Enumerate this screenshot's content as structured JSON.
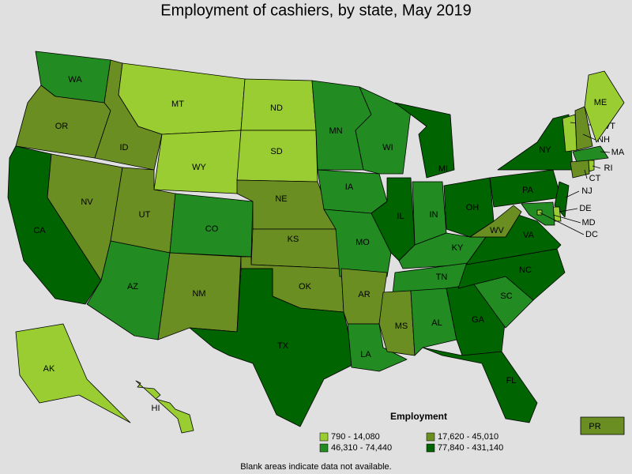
{
  "title": "Employment of cashiers, by state, May 2019",
  "legend": {
    "title": "Employment",
    "entries": [
      {
        "label": "790 - 14,080",
        "color": "#9acd32"
      },
      {
        "label": "17,620 - 45,010",
        "color": "#6b8e23"
      },
      {
        "label": "46,310 - 74,440",
        "color": "#228b22"
      },
      {
        "label": "77,840 - 431,140",
        "color": "#006400"
      }
    ]
  },
  "footnote": "Blank areas indicate data not available.",
  "states": [
    {
      "name": "WA",
      "color": "#228b22"
    },
    {
      "name": "OR",
      "color": "#6b8e23"
    },
    {
      "name": "CA",
      "color": "#006400"
    },
    {
      "name": "NV",
      "color": "#6b8e23"
    },
    {
      "name": "ID",
      "color": "#6b8e23"
    },
    {
      "name": "MT",
      "color": "#9acd32"
    },
    {
      "name": "WY",
      "color": "#9acd32"
    },
    {
      "name": "UT",
      "color": "#6b8e23"
    },
    {
      "name": "AZ",
      "color": "#228b22"
    },
    {
      "name": "CO",
      "color": "#228b22"
    },
    {
      "name": "NM",
      "color": "#6b8e23"
    },
    {
      "name": "ND",
      "color": "#9acd32"
    },
    {
      "name": "SD",
      "color": "#9acd32"
    },
    {
      "name": "NE",
      "color": "#6b8e23"
    },
    {
      "name": "KS",
      "color": "#6b8e23"
    },
    {
      "name": "OK",
      "color": "#6b8e23"
    },
    {
      "name": "TX",
      "color": "#006400"
    },
    {
      "name": "MN",
      "color": "#228b22"
    },
    {
      "name": "IA",
      "color": "#228b22"
    },
    {
      "name": "MO",
      "color": "#228b22"
    },
    {
      "name": "AR",
      "color": "#6b8e23"
    },
    {
      "name": "LA",
      "color": "#228b22"
    },
    {
      "name": "WI",
      "color": "#228b22"
    },
    {
      "name": "IL",
      "color": "#006400"
    },
    {
      "name": "MI",
      "color": "#006400"
    },
    {
      "name": "IN",
      "color": "#228b22"
    },
    {
      "name": "OH",
      "color": "#006400"
    },
    {
      "name": "KY",
      "color": "#228b22"
    },
    {
      "name": "TN",
      "color": "#228b22"
    },
    {
      "name": "MS",
      "color": "#6b8e23"
    },
    {
      "name": "AL",
      "color": "#228b22"
    },
    {
      "name": "GA",
      "color": "#006400"
    },
    {
      "name": "FL",
      "color": "#006400"
    },
    {
      "name": "SC",
      "color": "#228b22"
    },
    {
      "name": "NC",
      "color": "#006400"
    },
    {
      "name": "VA",
      "color": "#006400"
    },
    {
      "name": "WV",
      "color": "#6b8e23"
    },
    {
      "name": "PA",
      "color": "#006400"
    },
    {
      "name": "NY",
      "color": "#006400"
    },
    {
      "name": "NJ",
      "color": "#006400"
    },
    {
      "name": "DE",
      "color": "#9acd32"
    },
    {
      "name": "MD",
      "color": "#228b22"
    },
    {
      "name": "DC",
      "color": "#9acd32"
    },
    {
      "name": "VT",
      "color": "#9acd32"
    },
    {
      "name": "NH",
      "color": "#6b8e23"
    },
    {
      "name": "MA",
      "color": "#228b22"
    },
    {
      "name": "CT",
      "color": "#6b8e23"
    },
    {
      "name": "RI",
      "color": "#9acd32"
    },
    {
      "name": "ME",
      "color": "#9acd32"
    },
    {
      "name": "AK",
      "color": "#9acd32"
    },
    {
      "name": "HI",
      "color": "#9acd32"
    },
    {
      "name": "PR",
      "color": "#6b8e23"
    }
  ]
}
